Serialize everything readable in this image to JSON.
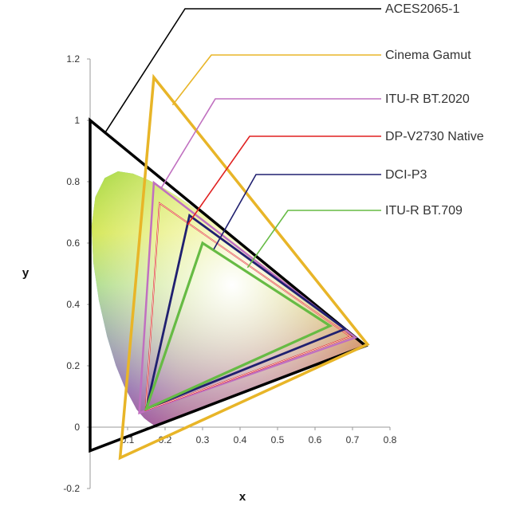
{
  "chart_data": {
    "type": "scatter",
    "xlabel": "x",
    "ylabel": "y",
    "xlim": [
      0,
      0.8
    ],
    "ylim": [
      -0.2,
      1.2
    ],
    "xticks": [
      "0.1",
      "0.2",
      "0.3",
      "0.4",
      "0.5",
      "0.6",
      "0.7",
      "0.8"
    ],
    "yticks": [
      "-0.2",
      "0",
      "0.2",
      "0.4",
      "0.6",
      "0.8",
      "1",
      "1.2"
    ],
    "grid": false,
    "legend": "right, with leader lines",
    "series": [
      {
        "name": "ACES2065-1",
        "color": "#000000",
        "points": [
          [
            0.7347,
            0.2653
          ],
          [
            0.0,
            1.0
          ],
          [
            0.0001,
            -0.077
          ]
        ]
      },
      {
        "name": "Cinema Gamut",
        "color": "#E8B528",
        "points": [
          [
            0.74,
            0.27
          ],
          [
            0.17,
            1.14
          ],
          [
            0.08,
            -0.1
          ]
        ]
      },
      {
        "name": "ITU-R BT.2020",
        "color": "#C070C0",
        "points": [
          [
            0.708,
            0.292
          ],
          [
            0.17,
            0.797
          ],
          [
            0.131,
            0.046
          ]
        ]
      },
      {
        "name": "DP-V2730 Native",
        "color": "#E02020",
        "points": [
          [
            0.695,
            0.295
          ],
          [
            0.185,
            0.73
          ],
          [
            0.148,
            0.055
          ]
        ]
      },
      {
        "name": "DCI-P3",
        "color": "#202070",
        "points": [
          [
            0.68,
            0.32
          ],
          [
            0.265,
            0.69
          ],
          [
            0.15,
            0.06
          ]
        ]
      },
      {
        "name": "ITU-R BT.709",
        "color": "#66BB44",
        "points": [
          [
            0.64,
            0.33
          ],
          [
            0.3,
            0.6
          ],
          [
            0.15,
            0.06
          ]
        ]
      }
    ],
    "spectral_locus": [
      [
        0.1741,
        0.005
      ],
      [
        0.172,
        0.0048
      ],
      [
        0.1689,
        0.0069
      ],
      [
        0.1644,
        0.0109
      ],
      [
        0.1566,
        0.0177
      ],
      [
        0.144,
        0.0297
      ],
      [
        0.1241,
        0.0578
      ],
      [
        0.0913,
        0.1327
      ],
      [
        0.0687,
        0.2007
      ],
      [
        0.0454,
        0.295
      ],
      [
        0.0235,
        0.4127
      ],
      [
        0.0082,
        0.5384
      ],
      [
        0.0039,
        0.6548
      ],
      [
        0.0139,
        0.7502
      ],
      [
        0.0389,
        0.812
      ],
      [
        0.0743,
        0.8338
      ],
      [
        0.1142,
        0.8262
      ],
      [
        0.1547,
        0.8059
      ],
      [
        0.1929,
        0.7816
      ],
      [
        0.2296,
        0.7543
      ],
      [
        0.2658,
        0.7243
      ],
      [
        0.3016,
        0.6923
      ],
      [
        0.3373,
        0.6589
      ],
      [
        0.3731,
        0.6245
      ],
      [
        0.4087,
        0.5896
      ],
      [
        0.4441,
        0.5547
      ],
      [
        0.4788,
        0.5202
      ],
      [
        0.5125,
        0.4866
      ],
      [
        0.5448,
        0.4544
      ],
      [
        0.5752,
        0.4242
      ],
      [
        0.6029,
        0.3965
      ],
      [
        0.627,
        0.3725
      ],
      [
        0.6482,
        0.3514
      ],
      [
        0.6658,
        0.334
      ],
      [
        0.6801,
        0.3197
      ],
      [
        0.6915,
        0.3083
      ],
      [
        0.7006,
        0.2993
      ],
      [
        0.7079,
        0.292
      ],
      [
        0.714,
        0.2859
      ],
      [
        0.719,
        0.2809
      ],
      [
        0.723,
        0.277
      ],
      [
        0.726,
        0.274
      ],
      [
        0.7283,
        0.2717
      ],
      [
        0.73,
        0.27
      ],
      [
        0.7347,
        0.2653
      ]
    ]
  }
}
